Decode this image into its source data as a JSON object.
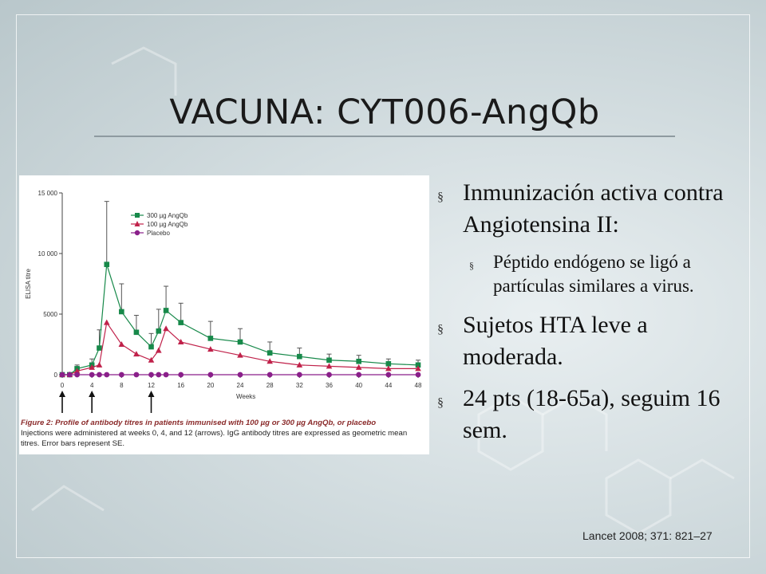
{
  "slide": {
    "title": "VACUNA: CYT006-AngQb",
    "bullets": [
      {
        "text": "Inmunización activa contra Angiotensina II:",
        "sub": [
          "Péptido endógeno se ligó a partículas similares a virus."
        ]
      },
      {
        "text": "Sujetos HTA leve a moderada.",
        "sub": []
      },
      {
        "text": "24 pts (18-65a), seguim 16 sem.",
        "sub": []
      }
    ],
    "bullet_marker": "§",
    "citation": "Lancet 2008; 371: 821–27"
  },
  "figure": {
    "caption_heading": "Figure 2: Profile of antibody titres in patients immunised with 100 µg or 300 µg AngQb, or placebo",
    "caption_body": "Injections were administered at weeks 0, 4, and 12 (arrows). IgG antibody titres are expressed as geometric mean titres. Error bars represent SE."
  },
  "chart_data": {
    "type": "line",
    "xlabel": "Weeks",
    "ylabel": "ELISA titre",
    "xlim": [
      0,
      48
    ],
    "ylim": [
      0,
      15000
    ],
    "x_ticks": [
      0,
      4,
      8,
      12,
      16,
      20,
      24,
      28,
      32,
      36,
      40,
      44,
      48
    ],
    "y_ticks": [
      0,
      5000,
      10000,
      15000
    ],
    "y_tick_labels": [
      "0",
      "5000",
      "10 000",
      "15 000"
    ],
    "injection_weeks": [
      0,
      4,
      12
    ],
    "legend_position": "top-left",
    "series": [
      {
        "name": "300 µg AngQb",
        "color": "#17894a",
        "marker": "square",
        "x": [
          0,
          1,
          2,
          4,
          5,
          6,
          8,
          10,
          12,
          13,
          14,
          16,
          20,
          24,
          28,
          32,
          36,
          40,
          44,
          48
        ],
        "y": [
          0,
          0,
          500,
          800,
          2200,
          9100,
          5200,
          3500,
          2300,
          3600,
          5300,
          4300,
          3000,
          2700,
          1800,
          1500,
          1200,
          1100,
          900,
          800
        ],
        "err": [
          0,
          0,
          300,
          500,
          1500,
          5200,
          2300,
          1400,
          1100,
          1800,
          2000,
          1600,
          1400,
          1100,
          900,
          700,
          500,
          500,
          400,
          400
        ]
      },
      {
        "name": "100 µg AngQb",
        "color": "#c0214a",
        "marker": "triangle",
        "x": [
          0,
          1,
          2,
          4,
          5,
          6,
          8,
          10,
          12,
          13,
          14,
          16,
          20,
          24,
          28,
          32,
          36,
          40,
          44,
          48
        ],
        "y": [
          0,
          0,
          300,
          600,
          800,
          4300,
          2500,
          1700,
          1200,
          2000,
          3800,
          2700,
          2100,
          1600,
          1100,
          800,
          700,
          600,
          500,
          500
        ],
        "err": [
          0,
          0,
          0,
          0,
          0,
          0,
          0,
          0,
          0,
          0,
          0,
          0,
          0,
          0,
          0,
          0,
          0,
          0,
          0,
          0
        ]
      },
      {
        "name": "Placebo",
        "color": "#8a1f8a",
        "marker": "circle",
        "x": [
          0,
          1,
          2,
          4,
          5,
          6,
          8,
          10,
          12,
          13,
          14,
          16,
          20,
          24,
          28,
          32,
          36,
          40,
          44,
          48
        ],
        "y": [
          0,
          0,
          0,
          0,
          0,
          0,
          0,
          0,
          0,
          0,
          0,
          0,
          0,
          0,
          0,
          0,
          0,
          0,
          0,
          0
        ],
        "err": [
          0,
          0,
          0,
          0,
          0,
          0,
          0,
          0,
          0,
          0,
          0,
          0,
          0,
          0,
          0,
          0,
          0,
          0,
          0,
          0
        ]
      }
    ]
  }
}
